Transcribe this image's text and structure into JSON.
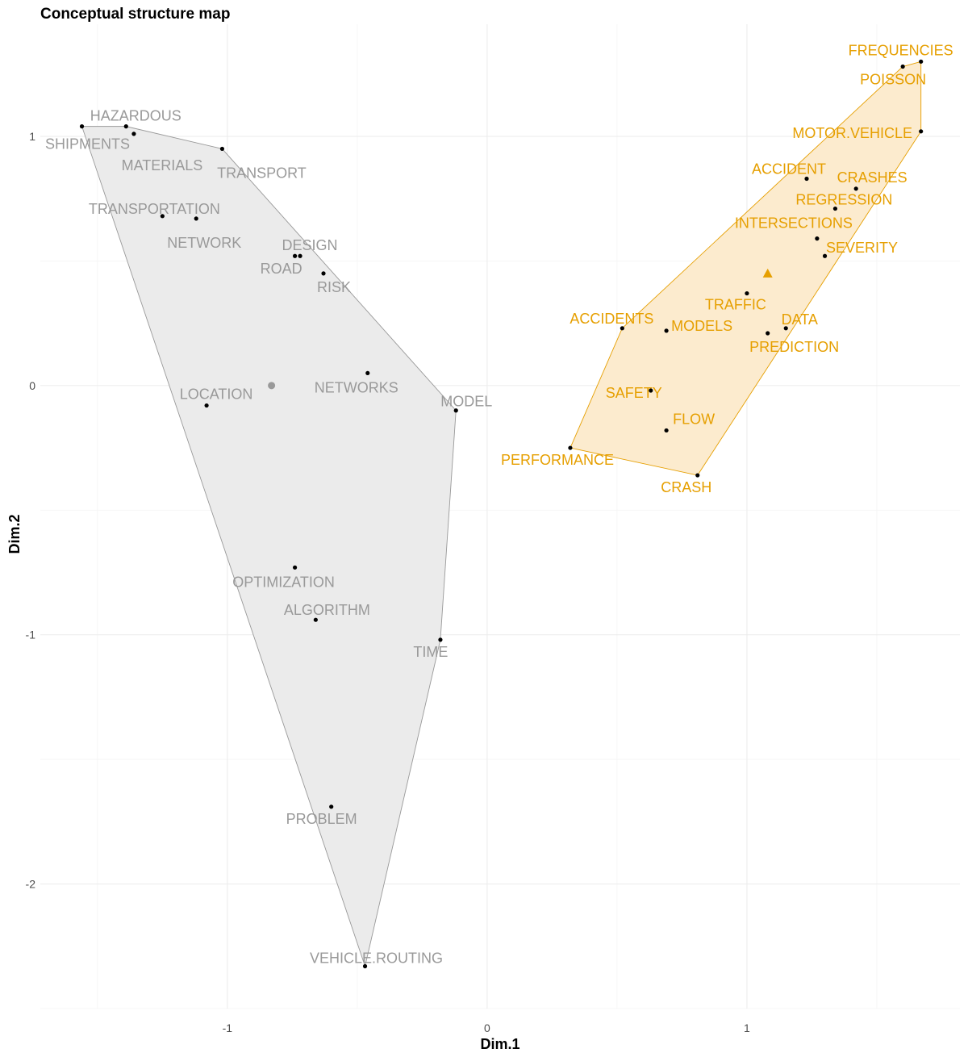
{
  "chart_data": {
    "type": "scatter",
    "title": "Conceptual structure map",
    "xlabel": "Dim.1",
    "ylabel": "Dim.2",
    "xlim": [
      -1.72,
      1.82
    ],
    "ylim": [
      -2.5,
      1.45
    ],
    "x_ticks": [
      -1,
      0,
      1
    ],
    "y_ticks": [
      -2,
      -1,
      0,
      1
    ],
    "grid": true,
    "clusters": [
      {
        "color": "#999999",
        "fill": "#ebebeb",
        "centroid": {
          "x": -0.83,
          "y": 0.0,
          "marker": "circle"
        },
        "hull": [
          "SHIPMENTS",
          "HAZARDOUS",
          "TRANSPORT",
          "MODEL",
          "TIME",
          "VEHICLE.ROUTING"
        ],
        "points": [
          {
            "label": "HAZARDOUS",
            "x": -1.39,
            "y": 1.04
          },
          {
            "label": "SHIPMENTS",
            "x": -1.56,
            "y": 1.04
          },
          {
            "label": "MATERIALS",
            "x": -1.36,
            "y": 1.01
          },
          {
            "label": "TRANSPORT",
            "x": -1.02,
            "y": 0.95
          },
          {
            "label": "TRANSPORTATION",
            "x": -1.25,
            "y": 0.68
          },
          {
            "label": "NETWORK",
            "x": -1.12,
            "y": 0.67
          },
          {
            "label": "DESIGN",
            "x": -0.72,
            "y": 0.52
          },
          {
            "label": "ROAD",
            "x": -0.74,
            "y": 0.52
          },
          {
            "label": "RISK",
            "x": -0.63,
            "y": 0.45
          },
          {
            "label": "NETWORKS",
            "x": -0.46,
            "y": 0.05
          },
          {
            "label": "LOCATION",
            "x": -1.08,
            "y": -0.08
          },
          {
            "label": "MODEL",
            "x": -0.12,
            "y": -0.1
          },
          {
            "label": "OPTIMIZATION",
            "x": -0.74,
            "y": -0.73
          },
          {
            "label": "ALGORITHM",
            "x": -0.66,
            "y": -0.94
          },
          {
            "label": "TIME",
            "x": -0.18,
            "y": -1.02
          },
          {
            "label": "PROBLEM",
            "x": -0.6,
            "y": -1.69
          },
          {
            "label": "VEHICLE.ROUTING",
            "x": -0.47,
            "y": -2.33
          }
        ]
      },
      {
        "color": "#e69f00",
        "fill": "#fcebce",
        "centroid": {
          "x": 1.08,
          "y": 0.45,
          "marker": "triangle"
        },
        "hull": [
          "FREQUENCIES",
          "MOTOR.VEHICLE",
          "CRASH",
          "PERFORMANCE",
          "ACCIDENTS",
          "POISSON"
        ],
        "points": [
          {
            "label": "FREQUENCIES",
            "x": 1.67,
            "y": 1.3
          },
          {
            "label": "POISSON",
            "x": 1.6,
            "y": 1.28
          },
          {
            "label": "MOTOR.VEHICLE",
            "x": 1.67,
            "y": 1.02
          },
          {
            "label": "ACCIDENT",
            "x": 1.23,
            "y": 0.83
          },
          {
            "label": "CRASHES",
            "x": 1.42,
            "y": 0.79
          },
          {
            "label": "REGRESSION",
            "x": 1.34,
            "y": 0.71
          },
          {
            "label": "INTERSECTIONS",
            "x": 1.27,
            "y": 0.59
          },
          {
            "label": "SEVERITY",
            "x": 1.3,
            "y": 0.52
          },
          {
            "label": "TRAFFIC",
            "x": 1.0,
            "y": 0.37
          },
          {
            "label": "ACCIDENTS",
            "x": 0.52,
            "y": 0.23
          },
          {
            "label": "MODELS",
            "x": 0.69,
            "y": 0.22
          },
          {
            "label": "DATA",
            "x": 1.15,
            "y": 0.23
          },
          {
            "label": "PREDICTION",
            "x": 1.08,
            "y": 0.21
          },
          {
            "label": "SAFETY",
            "x": 0.63,
            "y": -0.02
          },
          {
            "label": "FLOW",
            "x": 0.69,
            "y": -0.18
          },
          {
            "label": "PERFORMANCE",
            "x": 0.32,
            "y": -0.25
          },
          {
            "label": "CRASH",
            "x": 0.81,
            "y": -0.36
          }
        ]
      }
    ]
  }
}
